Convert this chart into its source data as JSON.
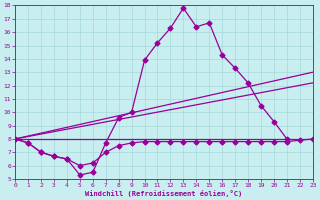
{
  "xlabel": "Windchill (Refroidissement éolien,°C)",
  "xlim": [
    0,
    23
  ],
  "ylim": [
    5,
    18
  ],
  "xticks": [
    0,
    1,
    2,
    3,
    4,
    5,
    6,
    7,
    8,
    9,
    10,
    11,
    12,
    13,
    14,
    15,
    16,
    17,
    18,
    19,
    20,
    21,
    22,
    23
  ],
  "yticks": [
    5,
    6,
    7,
    8,
    9,
    10,
    11,
    12,
    13,
    14,
    15,
    16,
    17,
    18
  ],
  "background_color": "#c8eef0",
  "line_color": "#990099",
  "grid_color": "#a8d8da",
  "curve_x": [
    0,
    1,
    2,
    3,
    4,
    5,
    6,
    7,
    8,
    9,
    10,
    11,
    12,
    13,
    14,
    15,
    16,
    17,
    18,
    19,
    20,
    21
  ],
  "curve_y": [
    8.0,
    7.7,
    7.0,
    6.7,
    6.5,
    5.3,
    5.5,
    7.7,
    9.6,
    10.0,
    13.9,
    15.2,
    16.3,
    17.8,
    16.4,
    16.7,
    14.3,
    13.3,
    12.2,
    10.5,
    9.3,
    8.0
  ],
  "flat_x": [
    0,
    1,
    2,
    3,
    4,
    5,
    6,
    7,
    8,
    9,
    10,
    11,
    12,
    13,
    14,
    15,
    16,
    17,
    18,
    19,
    20,
    21,
    22,
    23
  ],
  "flat_y": [
    8.0,
    7.7,
    7.0,
    6.7,
    6.5,
    6.0,
    6.2,
    7.0,
    7.5,
    7.7,
    7.8,
    7.8,
    7.8,
    7.8,
    7.8,
    7.8,
    7.8,
    7.8,
    7.8,
    7.8,
    7.8,
    7.8,
    7.9,
    8.0
  ],
  "trend1_x": [
    0,
    23
  ],
  "trend1_y": [
    8.0,
    13.0
  ],
  "trend2_x": [
    0,
    23
  ],
  "trend2_y": [
    8.0,
    12.2
  ],
  "trend3_x": [
    0,
    23
  ],
  "trend3_y": [
    8.0,
    8.0
  ]
}
